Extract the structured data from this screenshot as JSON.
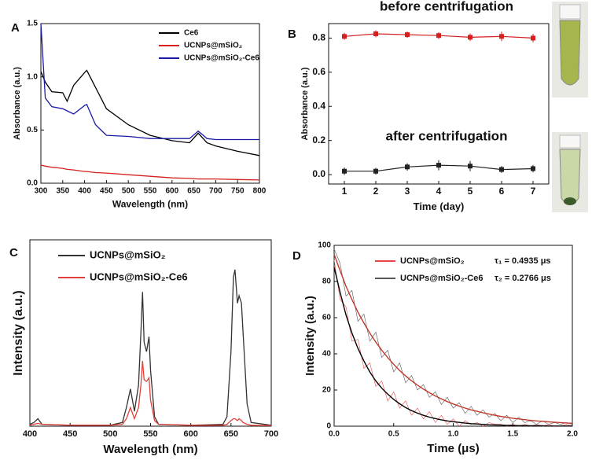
{
  "chart_data": [
    {
      "type": "line",
      "panel_label": "A",
      "x_label": "Wavelength (nm)",
      "y_label": "Absorbance (a.u.)",
      "x": [
        300,
        310,
        325,
        350,
        360,
        375,
        400,
        405,
        425,
        450,
        500,
        550,
        600,
        640,
        660,
        680,
        700,
        750,
        800
      ],
      "series": [
        {
          "name": "Ce6",
          "color": "#000000",
          "values": [
            1.05,
            0.95,
            0.86,
            0.85,
            0.77,
            0.92,
            1.04,
            1.06,
            0.9,
            0.7,
            0.55,
            0.45,
            0.4,
            0.38,
            0.47,
            0.38,
            0.35,
            0.3,
            0.26
          ]
        },
        {
          "name": "UCNPs@mSiO₂",
          "color": "#d62020",
          "values": [
            0.17,
            0.16,
            0.15,
            0.14,
            0.13,
            0.125,
            0.11,
            0.11,
            0.1,
            0.095,
            0.08,
            0.065,
            0.05,
            0.045,
            0.04,
            0.04,
            0.04,
            0.035,
            0.03
          ]
        },
        {
          "name": "UCNPs@mSiO₂-Ce6",
          "color": "#1a1aa8",
          "values": [
            1.5,
            0.8,
            0.72,
            0.7,
            0.68,
            0.65,
            0.73,
            0.74,
            0.55,
            0.45,
            0.44,
            0.42,
            0.42,
            0.42,
            0.49,
            0.42,
            0.41,
            0.41,
            0.41
          ]
        }
      ],
      "xlim": [
        300,
        800
      ],
      "ylim": [
        0,
        1.5
      ],
      "xticks": [
        300,
        350,
        400,
        450,
        500,
        550,
        600,
        650,
        700,
        750,
        800
      ],
      "yticks": [
        {
          "value": 0,
          "label": "0.0"
        },
        {
          "value": 0.5,
          "label": "0.5"
        },
        {
          "value": 1,
          "label": "1.0"
        },
        {
          "value": 1.5,
          "label": "1.5"
        }
      ],
      "legend": "upper right"
    },
    {
      "type": "errorbar",
      "panel_label": "B",
      "x_label": "Time (day)",
      "y_label": "Absorbance (a.u.)",
      "x": [
        1,
        2,
        3,
        4,
        5,
        6,
        7
      ],
      "series": [
        {
          "name": "before centrifugation",
          "color": "#d62020",
          "values": [
            0.81,
            0.825,
            0.82,
            0.815,
            0.805,
            0.81,
            0.8
          ],
          "errors": [
            0.02,
            0.02,
            0.018,
            0.02,
            0.022,
            0.028,
            0.025
          ]
        },
        {
          "name": "after centrifugation",
          "color": "#222222",
          "values": [
            0.02,
            0.02,
            0.045,
            0.055,
            0.05,
            0.03,
            0.035
          ],
          "errors": [
            0.022,
            0.02,
            0.022,
            0.03,
            0.03,
            0.02,
            0.022
          ]
        }
      ],
      "xlim": [
        0.5,
        7.5
      ],
      "ylim": [
        -0.055,
        0.885
      ],
      "xticks": [
        1,
        2,
        3,
        4,
        5,
        6,
        7
      ],
      "yticks": [
        {
          "value": 0,
          "label": "0.0"
        },
        {
          "value": 0.2,
          "label": "0.2"
        },
        {
          "value": 0.4,
          "label": "0.4"
        },
        {
          "value": 0.6,
          "label": "0.6"
        },
        {
          "value": 0.8,
          "label": "0.8"
        }
      ]
    },
    {
      "type": "line",
      "panel_label": "C",
      "x_label": "Wavelength (nm)",
      "y_label": "Intensity (a.u.)",
      "x": [
        400,
        405,
        410,
        415,
        450,
        500,
        515,
        520,
        525,
        530,
        535,
        538,
        540,
        542,
        545,
        548,
        550,
        555,
        560,
        600,
        640,
        645,
        650,
        653,
        655,
        658,
        660,
        663,
        665,
        670,
        675,
        700
      ],
      "series": [
        {
          "name": "UCNPs@mSiO₂",
          "color": "#333333",
          "values": [
            1,
            2,
            4,
            1,
            0.5,
            0.5,
            2,
            10,
            20,
            8,
            22,
            50,
            72,
            45,
            40,
            48,
            30,
            5,
            1,
            0.5,
            1,
            5,
            40,
            80,
            84,
            66,
            70,
            66,
            50,
            12,
            2,
            0.5
          ]
        },
        {
          "name": "UCNPs@mSiO₂-Ce6",
          "color": "#e0413a",
          "values": [
            0.5,
            1,
            1.5,
            1,
            0.5,
            0.5,
            1,
            4,
            10,
            4,
            10,
            22,
            35,
            25,
            24,
            26,
            14,
            3,
            1,
            0.5,
            0.5,
            1,
            3,
            4,
            4,
            3,
            4,
            3,
            2,
            1,
            0.5,
            0.3
          ]
        }
      ],
      "xlim": [
        400,
        700
      ],
      "ylim": [
        0,
        100
      ],
      "xticks": [
        400,
        450,
        500,
        550,
        600,
        650,
        700
      ],
      "legend": "upper left"
    },
    {
      "type": "line",
      "panel_label": "D",
      "x_label": "Time (μs)",
      "y_label": "Intensity (a.u.)",
      "x": [
        0,
        0.05,
        0.1,
        0.15,
        0.2,
        0.25,
        0.3,
        0.35,
        0.4,
        0.45,
        0.5,
        0.55,
        0.6,
        0.65,
        0.7,
        0.75,
        0.8,
        0.85,
        0.9,
        0.95,
        1,
        1.05,
        1.1,
        1.15,
        1.2,
        1.25,
        1.3,
        1.35,
        1.4,
        1.45,
        1.5,
        1.55,
        1.6,
        1.65,
        1.7,
        1.75,
        1.8,
        1.85,
        1.9,
        1.95,
        2
      ],
      "series": [
        {
          "name": "UCNPs@mSiO₂",
          "color": "#e8474a",
          "values": [
            92,
            70,
            66,
            47,
            48,
            32,
            35,
            22,
            25,
            14,
            19,
            10,
            14,
            6,
            10,
            4,
            8,
            2,
            6,
            1,
            4,
            0,
            3,
            1,
            2,
            0,
            2,
            1,
            1,
            0,
            1,
            0,
            1,
            0,
            1,
            0,
            1,
            0,
            0,
            1,
            0
          ]
        },
        {
          "name": "UCNPs@mSiO₂-Ce6",
          "color": "#555555",
          "values": [
            98,
            90,
            72,
            75,
            58,
            62,
            47,
            52,
            38,
            42,
            30,
            35,
            24,
            28,
            20,
            23,
            16,
            19,
            12,
            16,
            10,
            13,
            7,
            11,
            6,
            9,
            5,
            7,
            3,
            6,
            2,
            5,
            2,
            3,
            1,
            3,
            1,
            2,
            1,
            2,
            1
          ]
        },
        {
          "color": "#000000",
          "values": [
            88,
            74,
            61.5,
            51.5,
            43,
            36,
            30,
            25,
            21,
            17.7,
            14.8,
            12.4,
            10.3,
            8.6,
            7.2,
            6,
            5,
            4.2,
            3.5,
            2.9,
            2.5,
            2.1,
            1.7,
            1.4,
            1.2,
            1,
            0.8,
            0.7,
            0.6,
            0.5,
            0.4,
            0.3,
            0.3,
            0.2,
            0.2,
            0.2,
            0.1,
            0.1,
            0.1,
            0.1,
            0.1
          ]
        },
        {
          "color": "#c0392b",
          "values": [
            95,
            86,
            77.4,
            70,
            63,
            57,
            51.5,
            46.5,
            42,
            37.9,
            34.2,
            30.8,
            27.8,
            25.1,
            22.7,
            20.5,
            18.5,
            16.7,
            15.1,
            13.6,
            12.3,
            11.1,
            10,
            9,
            8.2,
            7.4,
            6.7,
            6,
            5.4,
            4.9,
            4.4,
            4,
            3.6,
            3.2,
            2.9,
            2.7,
            2.4,
            2.2,
            2,
            1.8,
            1.6
          ]
        }
      ],
      "xlim": [
        0,
        2
      ],
      "ylim": [
        0,
        100
      ],
      "xticks": [
        {
          "value": 0,
          "label": "0.0"
        },
        {
          "value": 0.5,
          "label": "0.5"
        },
        {
          "value": 1,
          "label": "1.0"
        },
        {
          "value": 1.5,
          "label": "1.5"
        },
        {
          "value": 2,
          "label": "2.0"
        }
      ],
      "yticks": [
        0,
        20,
        40,
        60,
        80,
        100
      ],
      "legend": "upper center",
      "annotations": [
        "τ₁ = 0.4935 μs",
        "τ₂ = 0.2766 μs"
      ]
    }
  ]
}
